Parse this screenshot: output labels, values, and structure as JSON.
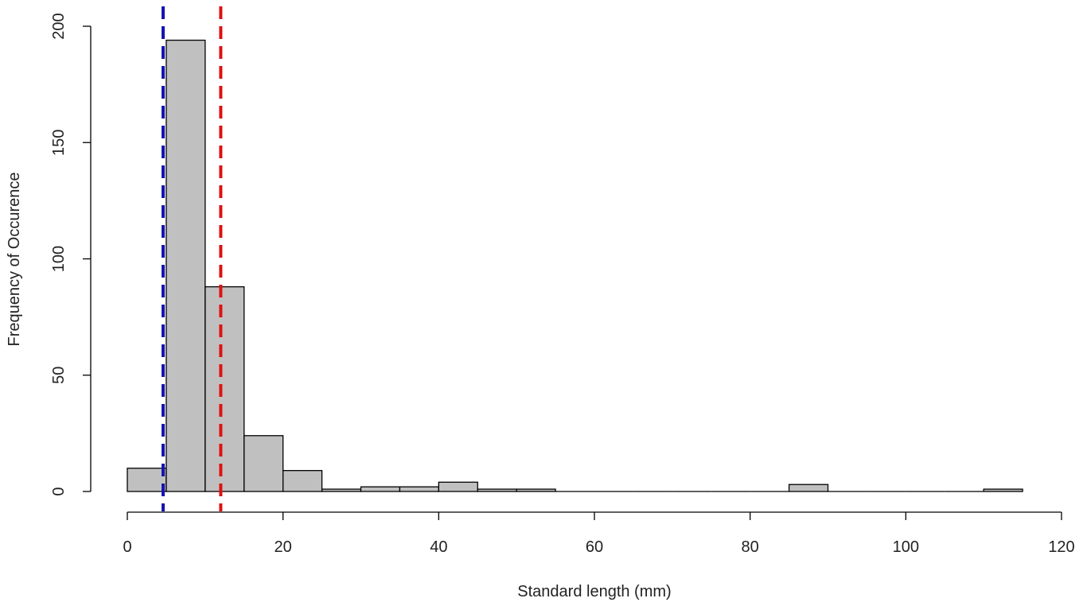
{
  "chart_data": {
    "type": "bar",
    "subtype": "histogram",
    "title": "",
    "xlabel": "Standard length (mm)",
    "ylabel": "Frequency of Occurence",
    "xlim": [
      0,
      120
    ],
    "ylim": [
      0,
      200
    ],
    "xticks": [
      0,
      20,
      40,
      60,
      80,
      100,
      120
    ],
    "yticks": [
      0,
      50,
      100,
      150,
      200
    ],
    "bin_width": 5,
    "bins": [
      {
        "x0": 0,
        "x1": 5,
        "count": 10
      },
      {
        "x0": 5,
        "x1": 10,
        "count": 194
      },
      {
        "x0": 10,
        "x1": 15,
        "count": 88
      },
      {
        "x0": 15,
        "x1": 20,
        "count": 24
      },
      {
        "x0": 20,
        "x1": 25,
        "count": 9
      },
      {
        "x0": 25,
        "x1": 30,
        "count": 1
      },
      {
        "x0": 30,
        "x1": 35,
        "count": 2
      },
      {
        "x0": 35,
        "x1": 40,
        "count": 2
      },
      {
        "x0": 40,
        "x1": 45,
        "count": 4
      },
      {
        "x0": 45,
        "x1": 50,
        "count": 1
      },
      {
        "x0": 50,
        "x1": 55,
        "count": 1
      },
      {
        "x0": 55,
        "x1": 60,
        "count": 0
      },
      {
        "x0": 60,
        "x1": 65,
        "count": 0
      },
      {
        "x0": 65,
        "x1": 70,
        "count": 0
      },
      {
        "x0": 70,
        "x1": 75,
        "count": 0
      },
      {
        "x0": 75,
        "x1": 80,
        "count": 0
      },
      {
        "x0": 80,
        "x1": 85,
        "count": 0
      },
      {
        "x0": 85,
        "x1": 90,
        "count": 3
      },
      {
        "x0": 90,
        "x1": 95,
        "count": 0
      },
      {
        "x0": 95,
        "x1": 100,
        "count": 0
      },
      {
        "x0": 100,
        "x1": 105,
        "count": 0
      },
      {
        "x0": 105,
        "x1": 110,
        "count": 0
      },
      {
        "x0": 110,
        "x1": 115,
        "count": 1
      }
    ],
    "vlines": [
      {
        "x": 4.6,
        "color": "#1414b4",
        "style": "dashed"
      },
      {
        "x": 12.0,
        "color": "#e01010",
        "style": "dashed"
      }
    ],
    "bar_color": "#c0c0c0",
    "grid": false
  }
}
